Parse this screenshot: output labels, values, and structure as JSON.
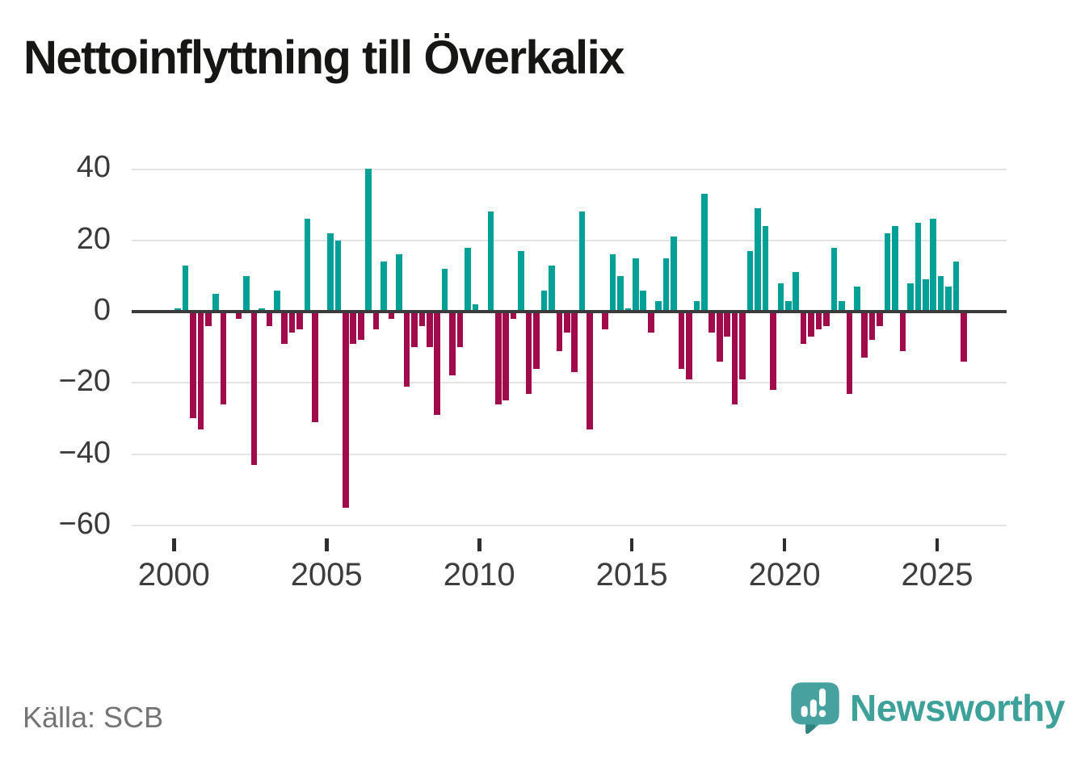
{
  "title": "Nettoinflyttning till Överkalix",
  "source": "Källa: SCB",
  "branding": {
    "name": "Newsworthy",
    "text_color": "#3da19a",
    "icon_color": "#47a29f",
    "icon_shade_color": "#2f827e"
  },
  "chart_data": {
    "type": "bar",
    "title": "Nettoinflyttning till Överkalix",
    "xlabel": "",
    "ylabel": "",
    "frequency": "quarterly",
    "period_start": "2000 Q1",
    "period_end": "2025 Q4",
    "ylim": [
      -60,
      40
    ],
    "grid": true,
    "legend": false,
    "zero_line": true,
    "color_positive": "#00a099",
    "color_negative": "#a00b4c",
    "yticks": [
      40,
      20,
      0,
      -20,
      -40,
      -60
    ],
    "ytick_labels": [
      "40",
      "20",
      "0",
      "−20",
      "−40",
      "−60"
    ],
    "xticks": [
      2000,
      2005,
      2010,
      2015,
      2020,
      2025
    ],
    "xtick_labels": [
      "2000",
      "2005",
      "2010",
      "2015",
      "2020",
      "2025"
    ],
    "years": [
      2000,
      2001,
      2002,
      2003,
      2004,
      2005,
      2006,
      2007,
      2008,
      2009,
      2010,
      2011,
      2012,
      2013,
      2014,
      2015,
      2016,
      2017,
      2018,
      2019,
      2020,
      2021,
      2022,
      2023,
      2024,
      2025
    ],
    "values": [
      1,
      13,
      -30,
      -33,
      -4,
      5,
      -26,
      0,
      -2,
      10,
      -43,
      1,
      -4,
      6,
      -9,
      -6,
      -5,
      26,
      -31,
      0,
      22,
      20,
      -55,
      -9,
      -8,
      40,
      -5,
      14,
      -2,
      16,
      -21,
      -10,
      -4,
      -10,
      -29,
      12,
      -18,
      -10,
      18,
      2,
      0,
      28,
      -26,
      -25,
      -2,
      17,
      -23,
      -16,
      6,
      13,
      -11,
      -6,
      -17,
      28,
      -33,
      0,
      -5,
      16,
      10,
      1,
      15,
      6,
      -6,
      3,
      15,
      21,
      -16,
      -19,
      3,
      33,
      -6,
      -14,
      -7,
      -26,
      -19,
      17,
      29,
      24,
      -22,
      8,
      3,
      11,
      -9,
      -7,
      -5,
      -4,
      18,
      3,
      -23,
      7,
      -13,
      -8,
      -4,
      22,
      24,
      -11,
      8,
      25,
      9,
      26,
      10,
      7,
      14,
      -14
    ]
  }
}
